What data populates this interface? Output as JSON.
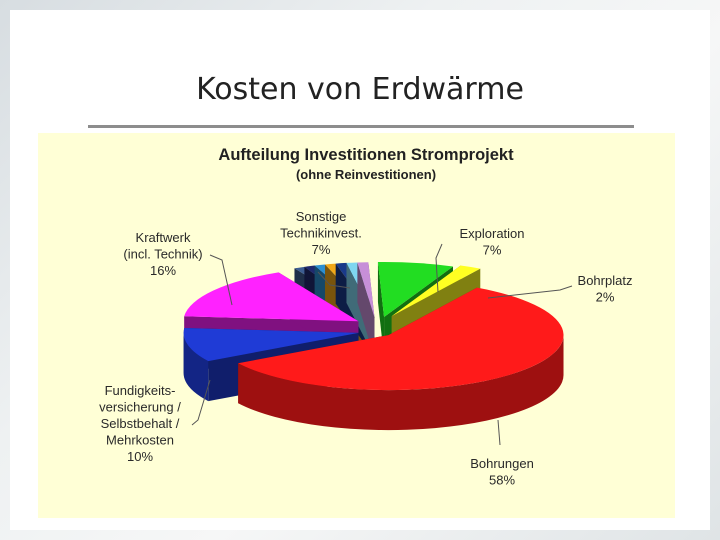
{
  "slide": {
    "title": "Kosten von Erdwärme"
  },
  "colors": {
    "panel_background": "#ffffd6",
    "title_rule": "#8d8d8d"
  },
  "chart_data": {
    "type": "pie",
    "style": "3d-exploded",
    "title": "Aufteilung Investitionen Stromprojekt",
    "subtitle": "(ohne Reinvestitionen)",
    "slices": [
      {
        "label": [
          "Exploration",
          "7%"
        ],
        "value": 7,
        "color": "#22dd22"
      },
      {
        "label": [
          "Bohrplatz",
          "2%"
        ],
        "value": 2,
        "color": "#ffff22"
      },
      {
        "label": [
          "Bohrungen",
          "58%"
        ],
        "value": 58,
        "color": "#ff1a1a"
      },
      {
        "label": [
          "Fundigkeits-",
          "versicherung /",
          "Selbstbehalt /",
          "Mehrkosten",
          "10%"
        ],
        "value": 10,
        "color": "#1f3bd6"
      },
      {
        "label": [
          "Kraftwerk",
          "(incl. Technik)",
          "16%"
        ],
        "value": 16,
        "color": "#ff22ff"
      },
      {
        "label": [
          "Sonstige",
          "Technikinvest.",
          "7%"
        ],
        "value": 7,
        "color": "#4a6a9a",
        "sub_colors": [
          "#3d5e92",
          "#1f2a6e",
          "#2c8fd0",
          "#f2a818",
          "#1a3a8a",
          "#7fd6f0",
          "#c78fd8"
        ]
      }
    ]
  }
}
